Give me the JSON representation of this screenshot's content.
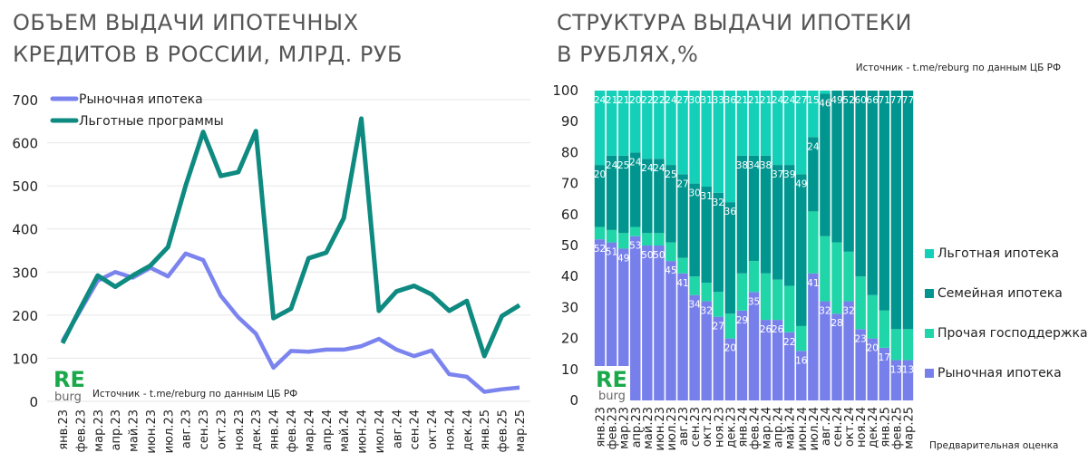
{
  "colors": {
    "market_line": "#7b84ee",
    "preferential_line": "#0e8a80",
    "pref_mortgage": "#14d0b8",
    "family_mortgage": "#00968f",
    "other_support": "#20d6a8",
    "market_mortgage": "#7780ea",
    "logo_green": "#19a84a",
    "logo_grey": "#666666"
  },
  "logo": {
    "top": "RE",
    "bottom": "burg"
  },
  "chart_data": [
    {
      "type": "line",
      "title_lines": [
        "ОБЪЕМ ВЫДАЧИ ИПОТЕЧНЫХ",
        "КРЕДИТОВ В РОССИИ, МЛРД. РУБ"
      ],
      "source": "Источник  - t.me/reburg по данным  ЦБ РФ",
      "ylim": [
        0,
        700
      ],
      "yticks": [
        0,
        100,
        200,
        300,
        400,
        500,
        600,
        700
      ],
      "grid": true,
      "legend_position": "top-left",
      "categories": [
        "янв.23",
        "фев.23",
        "мар.23",
        "апр.23",
        "май.23",
        "июн.23",
        "июл.23",
        "авг.23",
        "сен.23",
        "окт.23",
        "ноя.23",
        "дек.23",
        "янв.24",
        "фев.24",
        "мар.24",
        "апр.24",
        "май.24",
        "июн.24",
        "июл.24",
        "авг.24",
        "сен.24",
        "окт.24",
        "ноя.24",
        "дек.24",
        "янв.25",
        "фев.25",
        "мар.25"
      ],
      "series": [
        {
          "name": "Рыночная ипотека",
          "color_key": "market_line",
          "values": [
            140,
            210,
            280,
            300,
            287,
            310,
            290,
            343,
            328,
            245,
            195,
            157,
            78,
            117,
            115,
            120,
            120,
            128,
            145,
            120,
            105,
            118,
            63,
            57,
            22,
            28,
            32
          ]
        },
        {
          "name": "Льготные программы",
          "color_key": "preferential_line",
          "values": [
            135,
            215,
            292,
            266,
            292,
            315,
            358,
            500,
            625,
            523,
            532,
            627,
            193,
            215,
            332,
            345,
            425,
            656,
            210,
            255,
            268,
            248,
            210,
            233,
            105,
            198,
            223
          ]
        }
      ]
    },
    {
      "type": "bar",
      "stacked": true,
      "title_lines": [
        "СТРУКТУРА ВЫДАЧИ ИПОТЕКИ",
        "В РУБЛЯХ,%"
      ],
      "source": "Источник  - t.me/reburg по данным  ЦБ РФ",
      "note": "Предварительная оценка",
      "ylim": [
        0,
        100
      ],
      "yticks": [
        0,
        10,
        20,
        30,
        40,
        50,
        60,
        70,
        80,
        90,
        100
      ],
      "legend_position": "right",
      "categories": [
        "янв.23",
        "фев.23",
        "мар.23",
        "апр.23",
        "май.23",
        "июн.23",
        "июл.23",
        "авг.23",
        "сен.23",
        "окт.23",
        "ноя.23",
        "дек.23",
        "янв.24",
        "фев.24",
        "мар.24",
        "апр.24",
        "май.24",
        "июн.24",
        "июл.24",
        "авг.24",
        "сен.24",
        "окт.24",
        "ноя.24",
        "дек.24",
        "янв.25",
        "фев.25",
        "мар.25"
      ],
      "series": [
        {
          "name": "Рыночная ипотека",
          "color_key": "market_mortgage",
          "labeled": true,
          "values": [
            52,
            51,
            49,
            53,
            50,
            50,
            45,
            41,
            34,
            32,
            27,
            20,
            29,
            35,
            26,
            26,
            22,
            16,
            41,
            32,
            28,
            32,
            23,
            20,
            17,
            13,
            13
          ]
        },
        {
          "name": "Прочая господдержка",
          "color_key": "other_support",
          "labeled": false,
          "values": [
            4,
            4,
            5,
            3,
            4,
            4,
            6,
            5,
            6,
            6,
            8,
            8,
            12,
            10,
            15,
            13,
            15,
            8,
            20,
            21,
            23,
            16,
            17,
            14,
            12,
            10,
            10
          ]
        },
        {
          "name": "Семейная ипотека",
          "color_key": "family_mortgage",
          "labeled": true,
          "values": [
            20,
            24,
            25,
            24,
            24,
            24,
            25,
            27,
            30,
            31,
            32,
            36,
            38,
            34,
            38,
            37,
            39,
            49,
            24,
            46,
            49,
            52,
            60,
            66,
            71,
            77,
            77
          ]
        },
        {
          "name": "Льготная ипотека",
          "color_key": "pref_mortgage",
          "labeled": true,
          "values": [
            24,
            21,
            21,
            20,
            22,
            22,
            24,
            27,
            30,
            31,
            33,
            36,
            21,
            21,
            21,
            24,
            24,
            27,
            15,
            1,
            0,
            0,
            0,
            0,
            0,
            0,
            0
          ]
        }
      ],
      "legend_order": [
        "Льготная ипотека",
        "Семейная ипотека",
        "Прочая господдержка",
        "Рыночная ипотека"
      ]
    }
  ]
}
